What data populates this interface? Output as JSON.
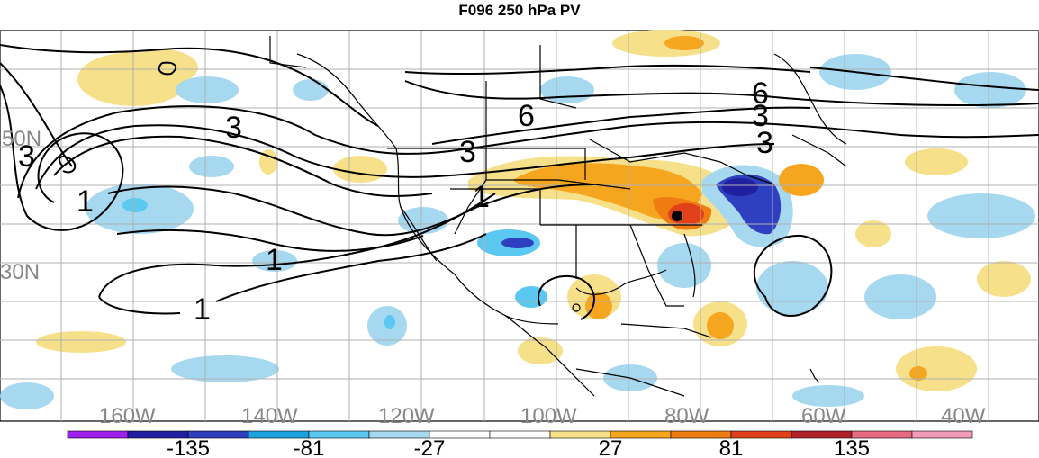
{
  "map": {
    "title": "F096 250 hPa PV",
    "latitude_labels": [
      "50N",
      "30N"
    ],
    "longitude_labels": [
      "160W",
      "140W",
      "120W",
      "100W",
      "80W",
      "60W",
      "40W"
    ],
    "contour_labels": [
      "3",
      "3",
      "1",
      "3",
      "6",
      "3",
      "1",
      "1",
      "1",
      "6",
      "3"
    ],
    "colorbar": {
      "colors": [
        "#a020f0",
        "#1f1fa0",
        "#2e3fc0",
        "#1ca3e0",
        "#5ac8f0",
        "#a6d8f0",
        "#ffffff",
        "#ffffff",
        "#f7e08a",
        "#f6a51e",
        "#f07b10",
        "#e0401a",
        "#b0222a",
        "#e86a80",
        "#f39ab8"
      ],
      "tick_labels": [
        "-135",
        "-81",
        "-27",
        "27",
        "81",
        "135"
      ]
    }
  }
}
